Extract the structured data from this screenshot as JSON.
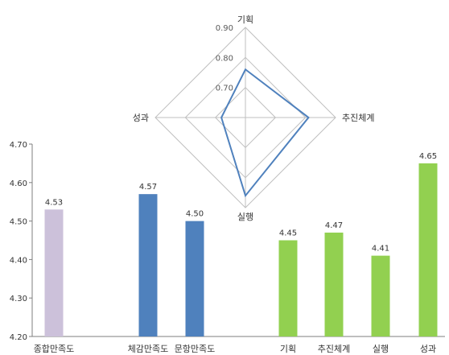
{
  "chart_data": [
    {
      "type": "bar",
      "title": "",
      "xlabel": "",
      "ylabel": "",
      "ylim": [
        4.2,
        4.7
      ],
      "yticks": [
        4.2,
        4.3,
        4.4,
        4.5,
        4.6,
        4.7
      ],
      "ytick_labels": [
        "4.20",
        "4.30",
        "4.40",
        "4.50",
        "4.60",
        "4.70"
      ],
      "grid": false,
      "legend": "none",
      "categories": [
        "종합만족도",
        "체감만족도",
        "문항만족도",
        "기획",
        "추진체계",
        "실행",
        "성과"
      ],
      "values": [
        4.53,
        4.57,
        4.5,
        4.45,
        4.47,
        4.41,
        4.65
      ],
      "value_labels": [
        "4.53",
        "4.57",
        "4.50",
        "4.45",
        "4.47",
        "4.41",
        "4.65"
      ],
      "colors": [
        "#ccc1da",
        "#4f81bd",
        "#4f81bd",
        "#92d050",
        "#92d050",
        "#92d050",
        "#92d050"
      ]
    },
    {
      "type": "radar",
      "title": "",
      "axes": [
        "기획",
        "추진체계",
        "실행",
        "성과"
      ],
      "range": [
        0.6,
        0.9
      ],
      "ticks": [
        0.7,
        0.8,
        0.9
      ],
      "tick_labels": [
        "0.70",
        "0.80",
        "0.90"
      ],
      "values": [
        0.76,
        0.81,
        0.86,
        0.68
      ],
      "line_color": "#4f81bd",
      "grid_color": "#bfbfbf"
    }
  ]
}
